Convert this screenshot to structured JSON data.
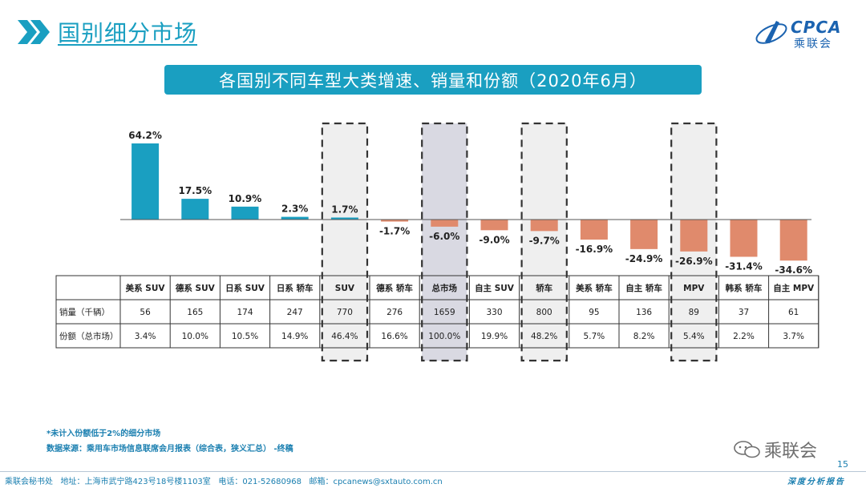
{
  "header": {
    "title": "国别细分市场"
  },
  "logo": {
    "text": "CPCA",
    "subtext": "乘联会"
  },
  "banner": {
    "title": "各国别不同车型大类增速、销量和份额（2020年6月）"
  },
  "colors": {
    "accent": "#1a9fc1",
    "positive": "#1a9fc1",
    "negative": "#e08a6c",
    "highlight_fill": "#d9d9e2",
    "box_fill": "#efefef"
  },
  "chart_data": {
    "type": "bar",
    "categories": [
      "美系 SUV",
      "德系 SUV",
      "日系 SUV",
      "日系 轿车",
      "SUV",
      "德系 轿车",
      "总市场",
      "自主 SUV",
      "轿车",
      "美系 轿车",
      "自主 轿车",
      "MPV",
      "韩系 轿车",
      "自主 MPV"
    ],
    "values": [
      64.2,
      17.5,
      10.9,
      2.3,
      1.7,
      -1.7,
      -6.0,
      -9.0,
      -9.7,
      -16.9,
      -24.9,
      -26.9,
      -31.4,
      -34.6
    ],
    "value_labels": [
      "64.2%",
      "17.5%",
      "10.9%",
      "2.3%",
      "1.7%",
      "-1.7%",
      "-6.0%",
      "-9.0%",
      "-9.7%",
      "-16.9%",
      "-24.9%",
      "-26.9%",
      "-31.4%",
      "-34.6%"
    ],
    "highlighted": [
      "SUV",
      "总市场",
      "轿车",
      "MPV"
    ],
    "table": {
      "rows": [
        {
          "label": "销量（千辆）",
          "cells": [
            "56",
            "165",
            "174",
            "247",
            "770",
            "276",
            "1659",
            "330",
            "800",
            "95",
            "136",
            "89",
            "37",
            "61"
          ]
        },
        {
          "label": "份额（总市场）",
          "cells": [
            "3.4%",
            "10.0%",
            "10.5%",
            "14.9%",
            "46.4%",
            "16.6%",
            "100.0%",
            "19.9%",
            "48.2%",
            "5.7%",
            "8.2%",
            "5.4%",
            "2.2%",
            "3.7%"
          ]
        }
      ]
    }
  },
  "notes": {
    "note1": "*未计入份额低于2%的细分市场",
    "note2": "数据来源：乘用车市场信息联席会月报表（综合表，狭义汇总）  -终稿"
  },
  "wechat": {
    "label": "乘联会"
  },
  "page_number": "15",
  "footer": {
    "text": "乘联会秘书处   地址：上海市武宁路423号18号楼1103室   电话：021-52680968   邮箱：cpcanews@sxtauto.com.cn",
    "right": "深度分析报告"
  }
}
